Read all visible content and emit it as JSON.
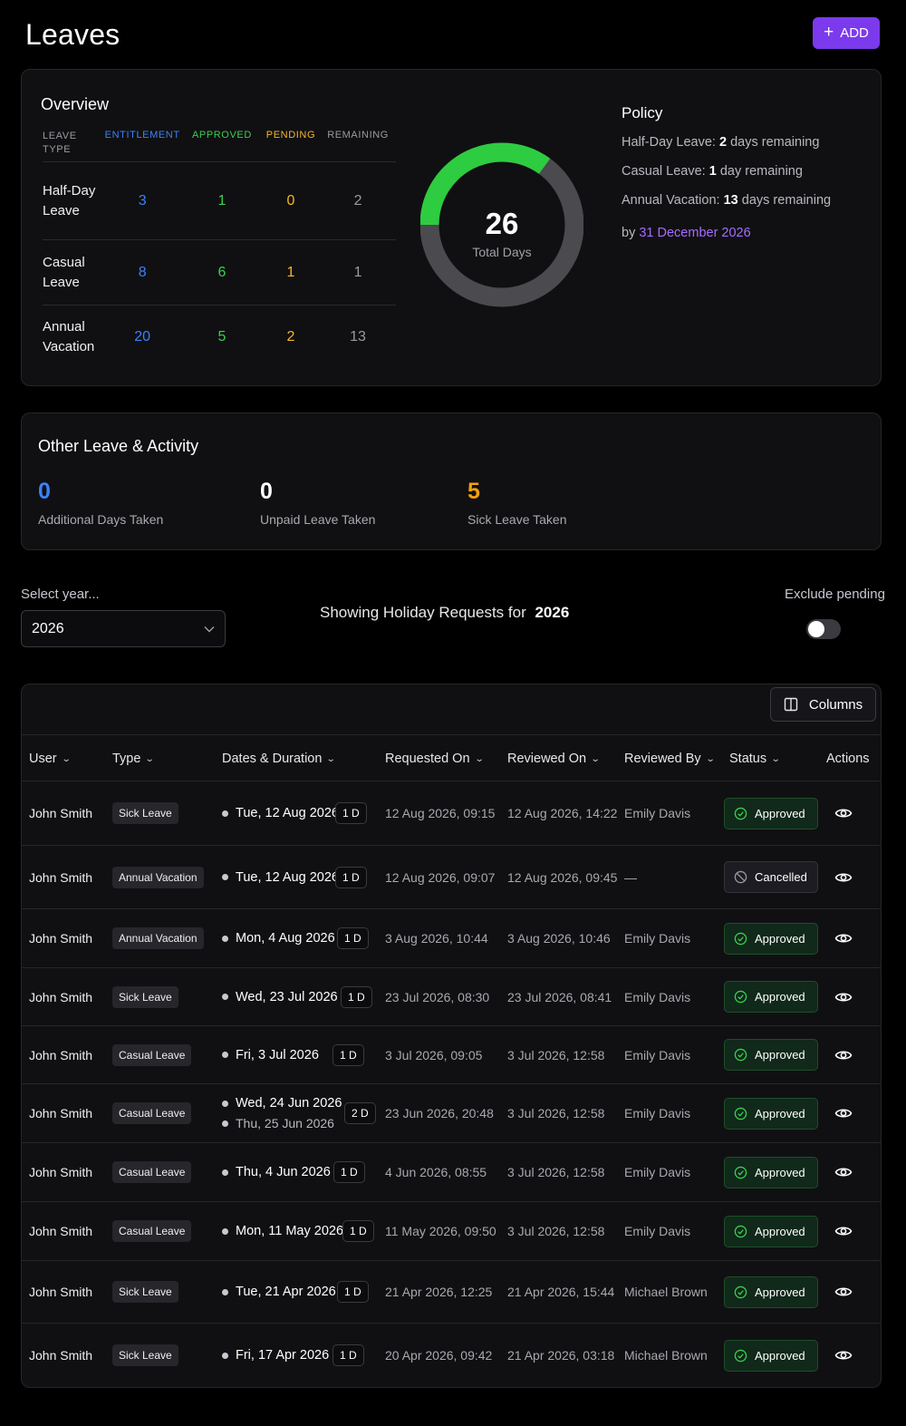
{
  "header": {
    "title": "Leaves",
    "add_label": "ADD"
  },
  "overview": {
    "title": "Overview",
    "columns": {
      "type": "LEAVE TYPE",
      "entitlement": "ENTITLEMENT",
      "approved": "APPROVED",
      "pending": "PENDING",
      "remaining": "REMAINING"
    },
    "rows": [
      {
        "type": "Half-Day Leave",
        "entitlement": "3",
        "approved": "1",
        "pending": "0",
        "remaining": "2"
      },
      {
        "type": "Casual Leave",
        "entitlement": "8",
        "approved": "6",
        "pending": "1",
        "remaining": "1"
      },
      {
        "type": "Annual Vacation",
        "entitlement": "20",
        "approved": "5",
        "pending": "2",
        "remaining": "13"
      }
    ],
    "donut": {
      "total": "26",
      "label": "Total Days",
      "used_fraction": 0.35,
      "used_color": "#2ecc40",
      "rest_color": "#4a4a4f"
    },
    "policy": {
      "title": "Policy",
      "lines": [
        {
          "name": "Half-Day Leave:",
          "value": "2",
          "unit": "days remaining"
        },
        {
          "name": "Casual Leave:",
          "value": "1",
          "unit": "day remaining"
        },
        {
          "name": "Annual Vacation:",
          "value": "13",
          "unit": "days remaining"
        }
      ],
      "by_prefix": "by",
      "by_date": "31 December 2026"
    }
  },
  "other": {
    "title": "Other Leave & Activity",
    "stats": [
      {
        "value": "0",
        "label": "Additional Days Taken",
        "color": "#3b82f6"
      },
      {
        "value": "0",
        "label": "Unpaid Leave Taken",
        "color": "#ffffff"
      },
      {
        "value": "5",
        "label": "Sick Leave Taken",
        "color": "#f59e0b"
      }
    ]
  },
  "filters": {
    "year_label": "Select year...",
    "year_value": "2026",
    "showing_prefix": "Showing Holiday Requests for",
    "showing_year": "2026",
    "exclude_label": "Exclude pending",
    "exclude_on": false
  },
  "table": {
    "columns_button": "Columns",
    "headers": {
      "user": "User",
      "type": "Type",
      "dates": "Dates & Duration",
      "requested": "Requested On",
      "reviewed": "Reviewed On",
      "reviewed_by": "Reviewed By",
      "status": "Status",
      "actions": "Actions"
    },
    "rows": [
      {
        "user": "John Smith",
        "type": "Sick Leave",
        "dates": [
          "Tue, 12 Aug 2026"
        ],
        "duration": "1 D",
        "requested": "12 Aug 2026, 09:15",
        "reviewed": "12 Aug 2026, 14:22",
        "reviewed_by": "Emily Davis",
        "status": "Approved"
      },
      {
        "user": "John Smith",
        "type": "Annual Vacation",
        "dates": [
          "Tue, 12 Aug 2026"
        ],
        "duration": "1 D",
        "requested": "12 Aug 2026, 09:07",
        "reviewed": "12 Aug 2026, 09:45",
        "reviewed_by": "—",
        "status": "Cancelled"
      },
      {
        "user": "John Smith",
        "type": "Annual Vacation",
        "dates": [
          "Mon, 4 Aug 2026"
        ],
        "duration": "1 D",
        "requested": "3 Aug 2026, 10:44",
        "reviewed": "3 Aug 2026, 10:46",
        "reviewed_by": "Emily Davis",
        "status": "Approved"
      },
      {
        "user": "John Smith",
        "type": "Sick Leave",
        "dates": [
          "Wed, 23 Jul 2026"
        ],
        "duration": "1 D",
        "requested": "23 Jul 2026, 08:30",
        "reviewed": "23 Jul 2026, 08:41",
        "reviewed_by": "Emily Davis",
        "status": "Approved"
      },
      {
        "user": "John Smith",
        "type": "Casual Leave",
        "dates": [
          "Fri, 3 Jul 2026"
        ],
        "duration": "1 D",
        "requested": "3 Jul 2026, 09:05",
        "reviewed": "3 Jul 2026, 12:58",
        "reviewed_by": "Emily Davis",
        "status": "Approved"
      },
      {
        "user": "John Smith",
        "type": "Casual Leave",
        "dates": [
          "Wed, 24 Jun 2026",
          "Thu, 25 Jun 2026"
        ],
        "duration": "2 D",
        "requested": "23 Jun 2026, 20:48",
        "reviewed": "3 Jul 2026, 12:58",
        "reviewed_by": "Emily Davis",
        "status": "Approved"
      },
      {
        "user": "John Smith",
        "type": "Casual Leave",
        "dates": [
          "Thu, 4 Jun 2026"
        ],
        "duration": "1 D",
        "requested": "4 Jun 2026, 08:55",
        "reviewed": "3 Jul 2026, 12:58",
        "reviewed_by": "Emily Davis",
        "status": "Approved"
      },
      {
        "user": "John Smith",
        "type": "Casual Leave",
        "dates": [
          "Mon, 11 May 2026"
        ],
        "duration": "1 D",
        "requested": "11 May 2026, 09:50",
        "reviewed": "3 Jul 2026, 12:58",
        "reviewed_by": "Emily Davis",
        "status": "Approved"
      },
      {
        "user": "John Smith",
        "type": "Sick Leave",
        "dates": [
          "Tue, 21 Apr 2026"
        ],
        "duration": "1 D",
        "requested": "21 Apr 2026, 12:25",
        "reviewed": "21 Apr 2026, 15:44",
        "reviewed_by": "Michael Brown",
        "status": "Approved"
      },
      {
        "user": "John Smith",
        "type": "Sick Leave",
        "dates": [
          "Fri, 17 Apr 2026"
        ],
        "duration": "1 D",
        "requested": "20 Apr 2026, 09:42",
        "reviewed": "21 Apr 2026, 03:18",
        "reviewed_by": "Michael Brown",
        "status": "Approved"
      }
    ]
  }
}
